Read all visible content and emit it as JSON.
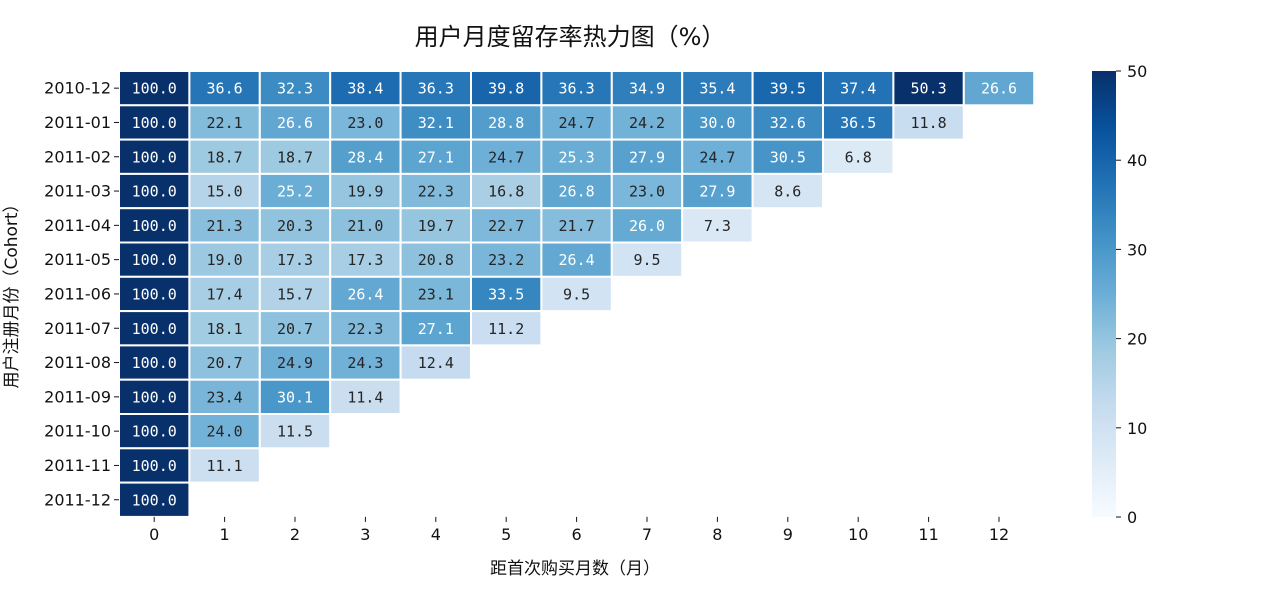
{
  "chart_data": {
    "type": "heatmap",
    "title": "用户月度留存率热力图（%）",
    "xlabel": "距首次购买月数（月）",
    "ylabel": "用户注册月份（Cohort）",
    "x_categories": [
      "0",
      "1",
      "2",
      "3",
      "4",
      "5",
      "6",
      "7",
      "8",
      "9",
      "10",
      "11",
      "12"
    ],
    "y_categories": [
      "2010-12",
      "2011-01",
      "2011-02",
      "2011-03",
      "2011-04",
      "2011-05",
      "2011-06",
      "2011-07",
      "2011-08",
      "2011-09",
      "2011-10",
      "2011-11",
      "2011-12"
    ],
    "values": [
      [
        100.0,
        36.6,
        32.3,
        38.4,
        36.3,
        39.8,
        36.3,
        34.9,
        35.4,
        39.5,
        37.4,
        50.3,
        26.6
      ],
      [
        100.0,
        22.1,
        26.6,
        23.0,
        32.1,
        28.8,
        24.7,
        24.2,
        30.0,
        32.6,
        36.5,
        11.8
      ],
      [
        100.0,
        18.7,
        18.7,
        28.4,
        27.1,
        24.7,
        25.3,
        27.9,
        24.7,
        30.5,
        6.8
      ],
      [
        100.0,
        15.0,
        25.2,
        19.9,
        22.3,
        16.8,
        26.8,
        23.0,
        27.9,
        8.6
      ],
      [
        100.0,
        21.3,
        20.3,
        21.0,
        19.7,
        22.7,
        21.7,
        26.0,
        7.3
      ],
      [
        100.0,
        19.0,
        17.3,
        17.3,
        20.8,
        23.2,
        26.4,
        9.5
      ],
      [
        100.0,
        17.4,
        15.7,
        26.4,
        23.1,
        33.5,
        9.5
      ],
      [
        100.0,
        18.1,
        20.7,
        22.3,
        27.1,
        11.2
      ],
      [
        100.0,
        20.7,
        24.9,
        24.3,
        12.4
      ],
      [
        100.0,
        23.4,
        30.1,
        11.4
      ],
      [
        100.0,
        24.0,
        11.5
      ],
      [
        100.0,
        11.1
      ],
      [
        100.0
      ]
    ],
    "colorbar": {
      "min": 0,
      "max": 50,
      "ticks": [
        "0",
        "10",
        "20",
        "30",
        "40",
        "50"
      ]
    },
    "colormap": "Blues",
    "legend": "colorbar-right",
    "grid": false
  }
}
